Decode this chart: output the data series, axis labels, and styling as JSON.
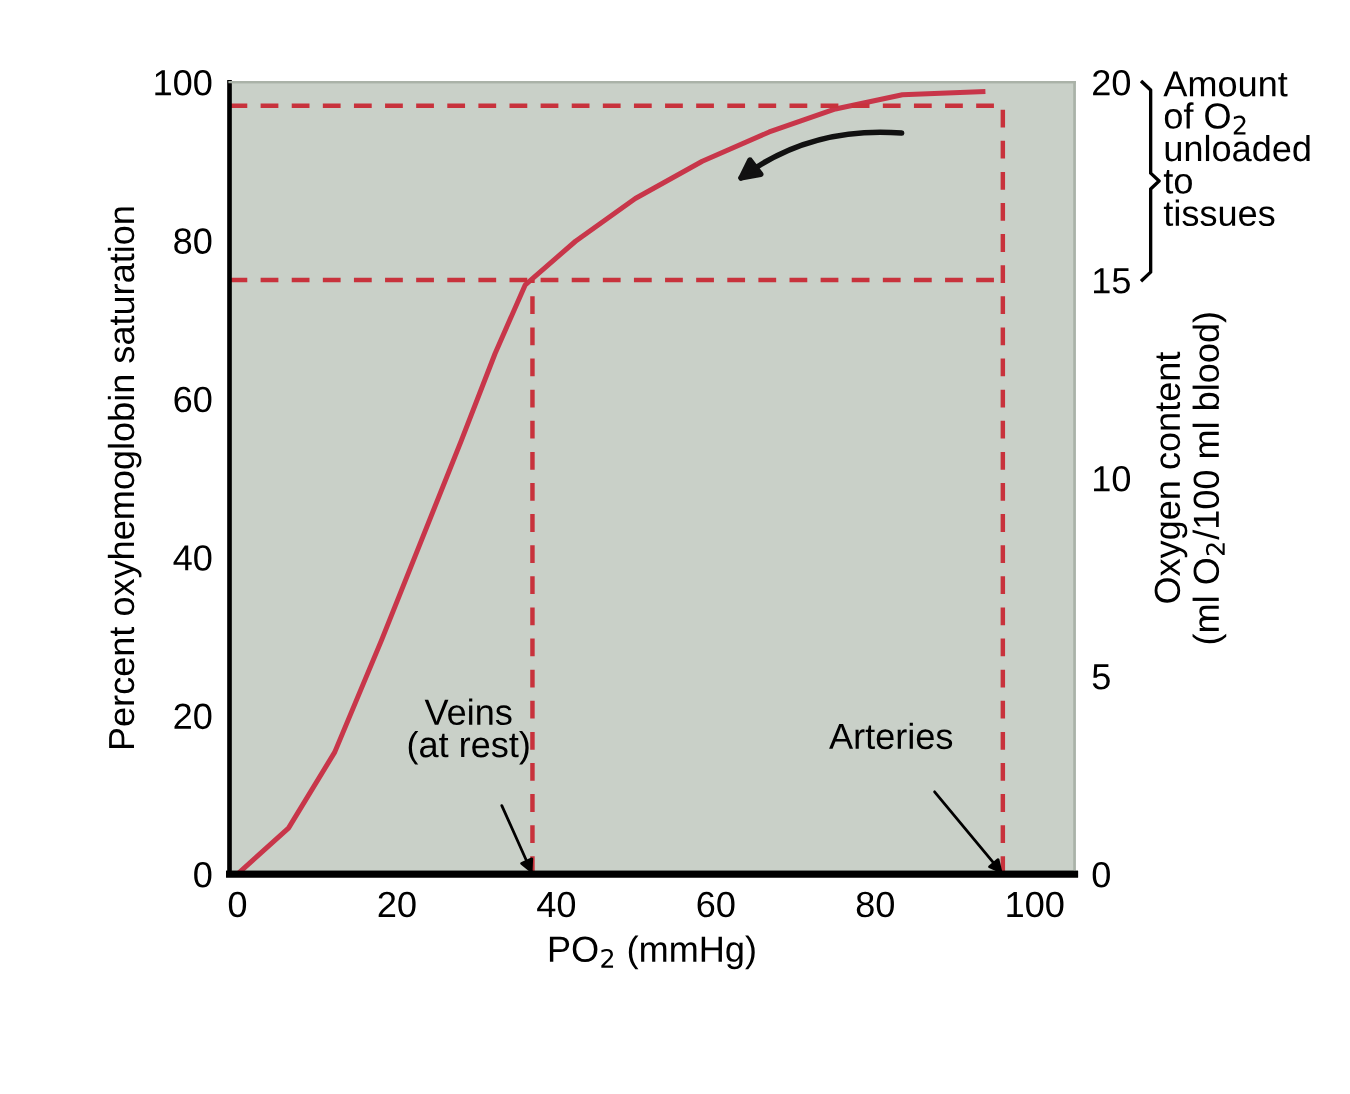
{
  "chart_data": {
    "type": "line",
    "xlabel": "PO$_{2}$ (mmHg)",
    "ylabel": "Percent oxyhemoglobin saturation",
    "y2label": "Oxygen content\n(ml O$_{2}$/100 ml blood)",
    "x": [
      0,
      6.4,
      12.2,
      18.1,
      23.1,
      28.1,
      32.3,
      36.1,
      42.4,
      49.9,
      58.3,
      66.7,
      75,
      83.4,
      93.5
    ],
    "series": [
      {
        "color": "#c8364a",
        "values": [
          0,
          5.8,
          15.4,
          29.6,
          42.2,
          54.8,
          65.7,
          74.4,
          79.9,
          85.3,
          90.0,
          93.7,
          96.6,
          98.4,
          98.8
        ]
      }
    ],
    "xlim": [
      -1,
      105
    ],
    "xticks": [
      0,
      20,
      40,
      60,
      80,
      100
    ],
    "ylim": [
      0,
      100
    ],
    "yticks": [
      0,
      20,
      40,
      60,
      80,
      100
    ],
    "y2lim": [
      0,
      20
    ],
    "y2ticks": [
      0,
      5,
      10,
      15,
      20
    ],
    "ref_lines": [
      {
        "axis": "y",
        "value": 97,
        "color": "#c8323c",
        "line_style": "dashed"
      },
      {
        "axis": "y",
        "value": 75,
        "color": "#c8323c",
        "line_style": "dashed"
      },
      {
        "axis": "x",
        "value": 96,
        "color": "#c8323c",
        "line_style": "dashed"
      },
      {
        "axis": "x",
        "value": 37,
        "color": "#c8323c",
        "line_style": "dashed"
      }
    ],
    "annotations": [
      {
        "text": "Veins\n(at rest)",
        "x": 37,
        "y": 0
      },
      {
        "text": "Arteries",
        "x": 96,
        "y": 0
      },
      "Amount\nof O$_{2}$\nunloaded\nto\ntissues"
    ],
    "grid": false,
    "legend": false,
    "marker": "none",
    "line_style": "solid"
  }
}
